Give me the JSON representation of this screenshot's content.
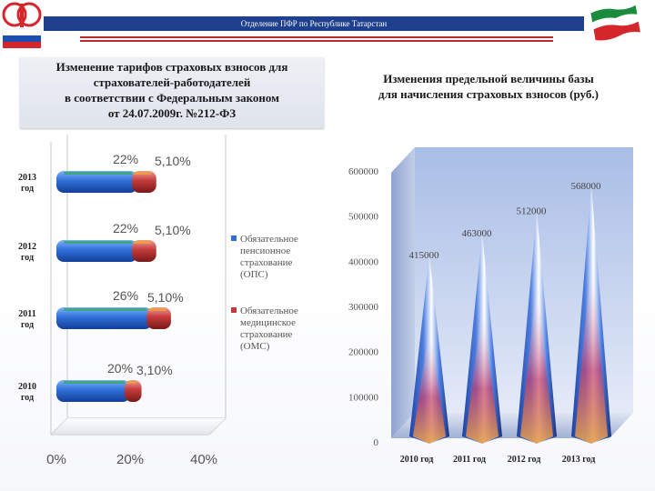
{
  "header": {
    "title": "Отделение ПФР по Республике Татарстан"
  },
  "left_heading": {
    "line1": "Изменение тарифов страховых взносов для",
    "line2": "страхователей-работодателей",
    "line3": "в соответствии с Федеральным законом",
    "line4": "от 24.07.2009г. №212-ФЗ"
  },
  "right_heading": {
    "line1": "Изменения предельной величины базы",
    "line2": "для начисления страховых взносов (руб.)"
  },
  "colors": {
    "ops": "#2f6fd8",
    "oms": "#c33a3a",
    "title_bar": "#1f3f8f",
    "accent_red": "#c0282b"
  },
  "chart_data": [
    {
      "type": "bar",
      "orientation": "horizontal",
      "categories": [
        "2013 год",
        "2012 год",
        "2011 год",
        "2010 год"
      ],
      "series": [
        {
          "name": "Обязательное пенсионное страхование (ОПС)",
          "values": [
            22,
            22,
            26,
            20
          ],
          "labels": [
            "22%",
            "22%",
            "26%",
            "20%"
          ]
        },
        {
          "name": "Обязательное медицинское страхование (ОМС)",
          "values": [
            5.1,
            5.1,
            5.1,
            3.1
          ],
          "labels": [
            "5,10%",
            "5,10%",
            "5,10%",
            "3,10%"
          ]
        }
      ],
      "stacked": true,
      "xlim": [
        0,
        40
      ],
      "x_ticks": [
        "0%",
        "20%",
        "40%"
      ],
      "legend": {
        "placement": "right",
        "entries": [
          {
            "lines": [
              "Обязательное",
              "пенсионное",
              "страхование",
              "(ОПС)"
            ]
          },
          {
            "lines": [
              "Обязательное",
              "медицинское",
              "страхование",
              "(ОМС)"
            ]
          }
        ]
      },
      "grid": false
    },
    {
      "type": "bar",
      "style": "3d-cone",
      "categories": [
        "2010 год",
        "2011 год",
        "2012 год",
        "2013 год"
      ],
      "values": [
        415000,
        463000,
        512000,
        568000
      ],
      "labels": [
        "415000",
        "463000",
        "512000",
        "568000"
      ],
      "ylim": [
        0,
        600000
      ],
      "y_ticks": [
        "0",
        "100000",
        "200000",
        "300000",
        "400000",
        "500000",
        "600000"
      ],
      "grid": false
    }
  ]
}
